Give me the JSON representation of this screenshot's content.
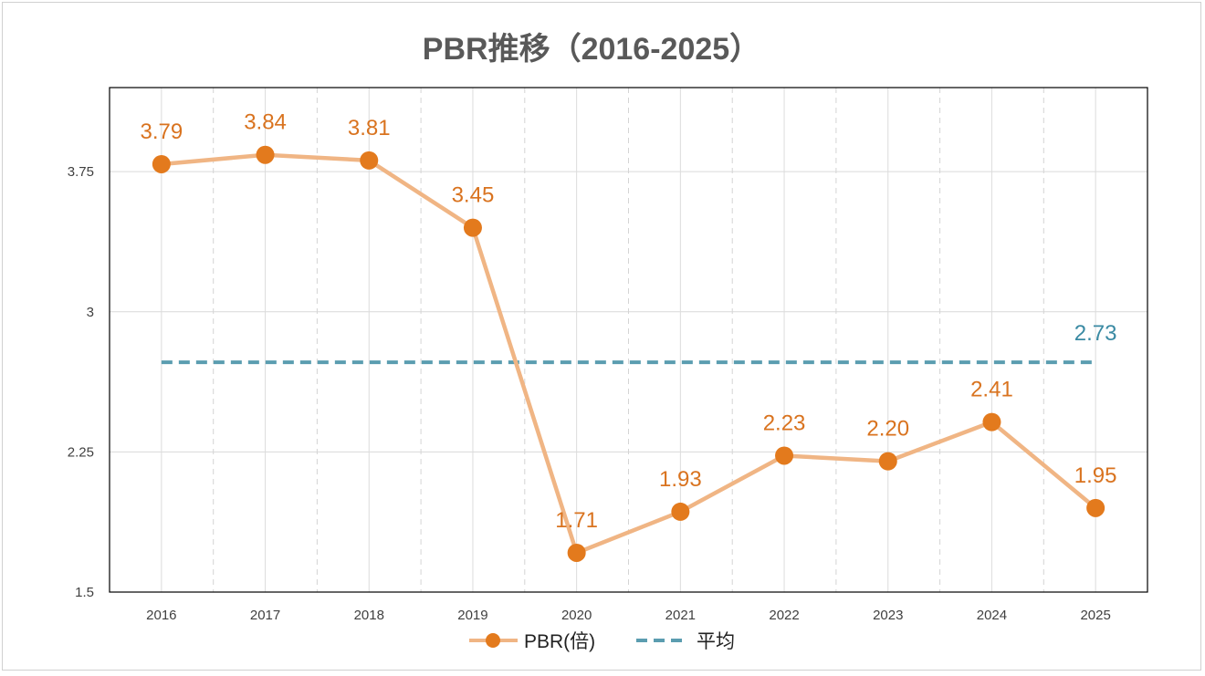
{
  "chart_data": {
    "type": "line",
    "title": "PBR推移（2016-2025）",
    "xlabel": "",
    "ylabel": "",
    "categories": [
      "2016",
      "2017",
      "2018",
      "2019",
      "2020",
      "2021",
      "2022",
      "2023",
      "2024",
      "2025"
    ],
    "ylim": [
      1.5,
      4.2
    ],
    "yticks": [
      1.5,
      2.25,
      3,
      3.75
    ],
    "ytick_labels": [
      "1.5",
      "2.25",
      "3",
      "3.75"
    ],
    "grid": true,
    "legend_position": "bottom",
    "series": [
      {
        "name": "PBR(倍)",
        "values": [
          3.79,
          3.84,
          3.81,
          3.45,
          1.71,
          1.93,
          2.23,
          2.2,
          2.41,
          1.95
        ],
        "labels": [
          "3.79",
          "3.84",
          "3.81",
          "3.45",
          "1.71",
          "1.93",
          "2.23",
          "2.20",
          "2.41",
          "1.95"
        ],
        "line_color": "#f0b584",
        "marker_color": "#e37a1d",
        "label_color": "#d9731f"
      },
      {
        "name": "平均",
        "value": 2.73,
        "label": "2.73",
        "style": "dashed",
        "color": "#5b9db0",
        "label_color": "#3a8aa3"
      }
    ]
  }
}
